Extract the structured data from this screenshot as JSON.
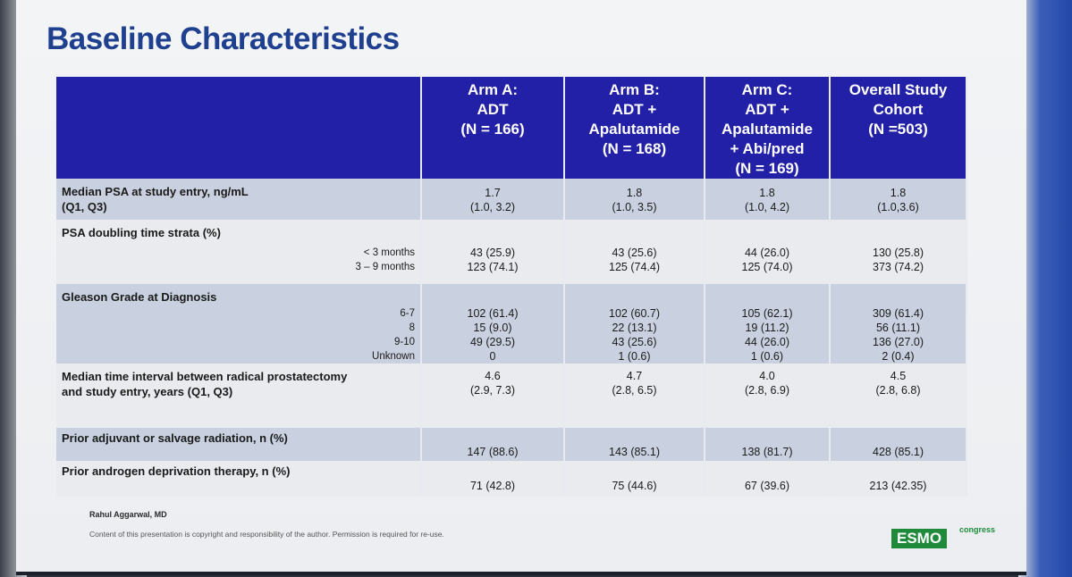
{
  "title": "Baseline Characteristics",
  "columns": [
    {
      "lines": [
        "Arm A:",
        "ADT",
        "(N = 166)"
      ]
    },
    {
      "lines": [
        "Arm B:",
        "ADT +",
        "Apalutamide",
        "(N = 168)"
      ]
    },
    {
      "lines": [
        "Arm C:",
        "ADT +",
        "Apalutamide",
        "+ Abi/pred",
        "(N = 169)"
      ]
    },
    {
      "lines": [
        "Overall Study",
        "Cohort",
        "(N =503)"
      ]
    }
  ],
  "rows": {
    "psa": {
      "label1": "Median PSA at study entry, ng/mL",
      "label2": "(Q1, Q3)",
      "a": [
        "1.7",
        "(1.0, 3.2)"
      ],
      "b": [
        "1.8",
        "(1.0, 3.5)"
      ],
      "c": [
        "1.8",
        "(1.0, 4.2)"
      ],
      "o": [
        "1.8",
        "(1.0,3.6)"
      ]
    },
    "psadt": {
      "label": "PSA doubling time strata (%)",
      "subs": [
        "< 3 months",
        "3 – 9 months"
      ],
      "a": [
        "43 (25.9)",
        "123 (74.1)"
      ],
      "b": [
        "43 (25.6)",
        "125 (74.4)"
      ],
      "c": [
        "44 (26.0)",
        "125 (74.0)"
      ],
      "o": [
        "130 (25.8)",
        "373 (74.2)"
      ]
    },
    "gleason": {
      "label": "Gleason Grade at Diagnosis",
      "subs": [
        "6-7",
        "8",
        "9-10",
        "Unknown"
      ],
      "a": [
        "102 (61.4)",
        "15 (9.0)",
        "49 (29.5)",
        "0"
      ],
      "b": [
        "102 (60.7)",
        "22 (13.1)",
        "43 (25.6)",
        "1 (0.6)"
      ],
      "c": [
        "105 (62.1)",
        "19 (11.2)",
        "44 (26.0)",
        "1 (0.6)"
      ],
      "o": [
        "309 (61.4)",
        "56 (11.1)",
        "136 (27.0)",
        "2 (0.4)"
      ]
    },
    "interval": {
      "label1": "Median time interval between radical prostatectomy",
      "label2": "and study entry, years (Q1, Q3)",
      "a": [
        "4.6",
        "(2.9, 7.3)"
      ],
      "b": [
        "4.7",
        "(2.8, 6.5)"
      ],
      "c": [
        "4.0",
        "(2.8, 6.9)"
      ],
      "o": [
        "4.5",
        "(2.8, 6.8)"
      ]
    },
    "radiation": {
      "label": "Prior adjuvant or salvage radiation, n (%)",
      "a": "147 (88.6)",
      "b": "143 (85.1)",
      "c": "138 (81.7)",
      "o": "428 (85.1)"
    },
    "adt": {
      "label": "Prior androgen deprivation therapy, n (%)",
      "a": "71 (42.8)",
      "b": "75 (44.6)",
      "c": "67 (39.6)",
      "o": "213 (42.35)"
    }
  },
  "footer": {
    "author": "Rahul Aggarwal, MD",
    "disclaimer": "Content of this presentation is copyright and responsibility of the author. Permission is required for re-use."
  },
  "logo": {
    "main": "ESMO",
    "sub": "congress",
    "color": "#1e8a3a"
  },
  "colors": {
    "header": "#2220a6",
    "title": "#1f3f8f",
    "shade": "#c9d1e0",
    "light": "#e9ebef"
  }
}
